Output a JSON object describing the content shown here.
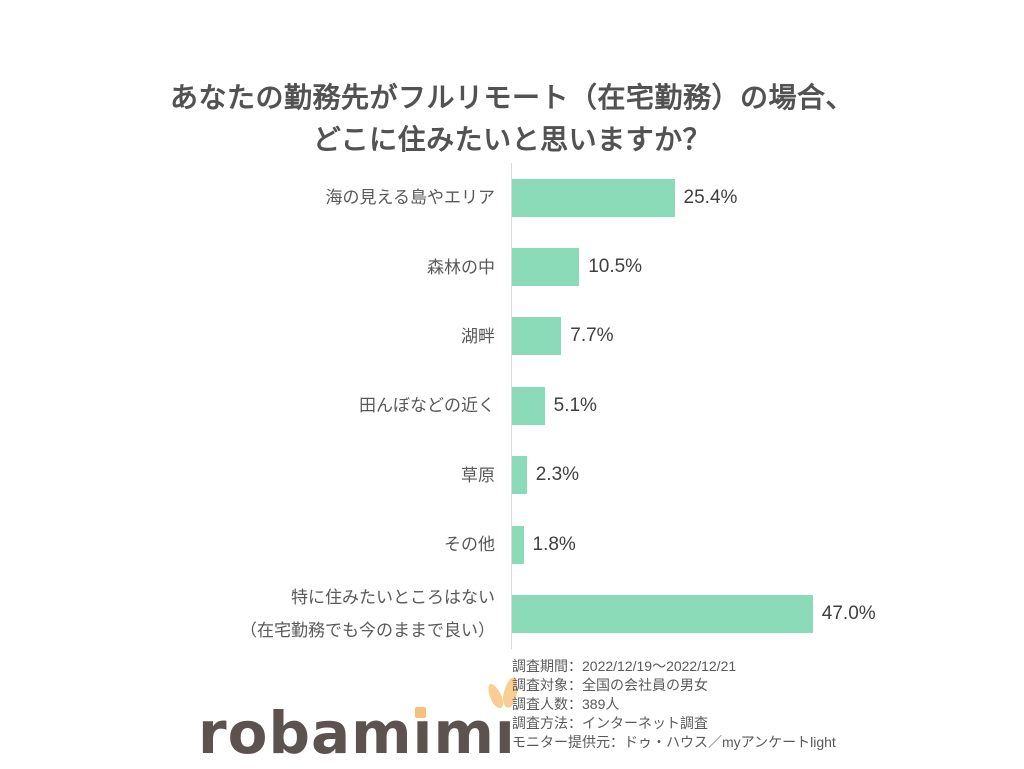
{
  "title": {
    "line1": "あなたの勤務先がフルリモート（在宅勤務）の場合、",
    "line2": "どこに住みたいと思いますか？"
  },
  "chart_data": {
    "type": "bar",
    "orientation": "horizontal",
    "categories": [
      "海の見える島やエリア",
      "森林の中",
      "湖畔",
      "田んぼなどの近く",
      "草原",
      "その他",
      "特に住みたいところはない\n（在宅勤務でも今のままで良い）"
    ],
    "values": [
      25.4,
      10.5,
      7.7,
      5.1,
      2.3,
      1.8,
      47.0
    ],
    "value_labels": [
      "25.4%",
      "10.5%",
      "7.7%",
      "5.1%",
      "2.3%",
      "1.8%",
      "47.0%"
    ],
    "xlim": [
      0,
      50
    ],
    "grid": false,
    "legend": "none",
    "value_label_position": "outside-end",
    "bar_color": "#8CDBB8",
    "axis_color": "#D9D9D9"
  },
  "footer": {
    "survey_info": [
      "調査期間：2022/12/19～2022/12/21",
      "調査対象：全国の会社員の男女",
      "調査人数：389人",
      "調査方法：インターネット調査",
      "モニター提供元：ドゥ・ハウス／myアンケートlight"
    ],
    "logo": {
      "brand": "robamimi",
      "part1": "robam",
      "part2": "ı",
      "part3": "m",
      "part4": "ı",
      "text_color": "#5C5351",
      "dot_color": "#F5BF7D",
      "ear_color": "#F8CE92"
    }
  }
}
